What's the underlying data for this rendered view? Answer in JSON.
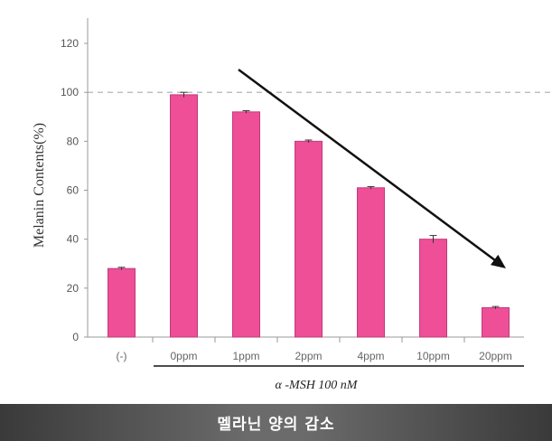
{
  "chart_data": {
    "type": "bar",
    "categories": [
      "(-)",
      "0ppm",
      "1ppm",
      "2ppm",
      "4ppm",
      "10ppm",
      "20ppm"
    ],
    "values": [
      28,
      99,
      92,
      80,
      61,
      40,
      12
    ],
    "errors": [
      0.5,
      1,
      0.5,
      0.5,
      0.5,
      1.5,
      0.5
    ],
    "ylabel": "Melanin Contents(%)",
    "yticks": [
      0,
      20,
      40,
      60,
      80,
      100,
      120
    ],
    "ylim": [
      0,
      130
    ],
    "reference_line": 100,
    "group_label": "α -MSH 100 nM",
    "bar_color": "#ee4f97",
    "bar_edge_color": "#c23a7a",
    "annotation": "downward trend arrow from 1ppm to 20ppm"
  },
  "caption": "멜라닌 양의 감소"
}
